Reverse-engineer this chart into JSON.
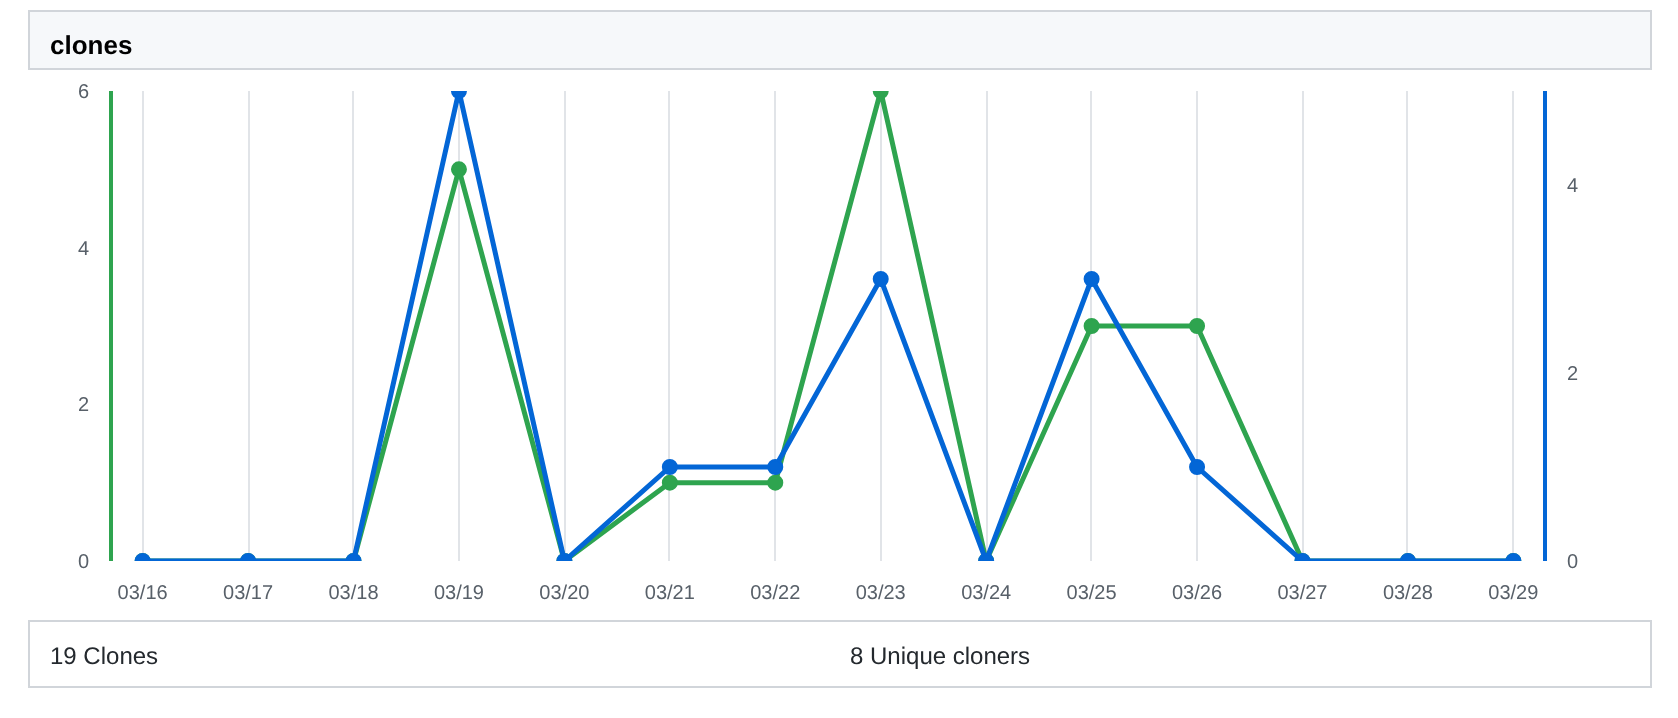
{
  "chart_data": {
    "type": "line",
    "title": "clones",
    "categories": [
      "03/16",
      "03/17",
      "03/18",
      "03/19",
      "03/20",
      "03/21",
      "03/22",
      "03/23",
      "03/24",
      "03/25",
      "03/26",
      "03/27",
      "03/28",
      "03/29"
    ],
    "series": [
      {
        "color": "#2ea44f",
        "values": [
          0,
          0,
          0,
          5,
          0,
          1,
          1,
          6,
          0,
          3,
          3,
          0,
          0,
          0
        ]
      },
      {
        "color": "#0366d6",
        "axis": "y2",
        "values": [
          0,
          0,
          0,
          5,
          0,
          1,
          1,
          3,
          0,
          3,
          1,
          0,
          0,
          0
        ]
      }
    ],
    "ylim": [
      0,
      6
    ],
    "yticks": [
      0,
      2,
      4,
      6
    ],
    "y2lim": [
      0,
      5
    ],
    "y2ticks": [
      0,
      2,
      4
    ],
    "grid": "x",
    "marker": "circle",
    "line_style": "solid",
    "annotations": [
      "19 Clones",
      "8 Unique cloners"
    ]
  }
}
